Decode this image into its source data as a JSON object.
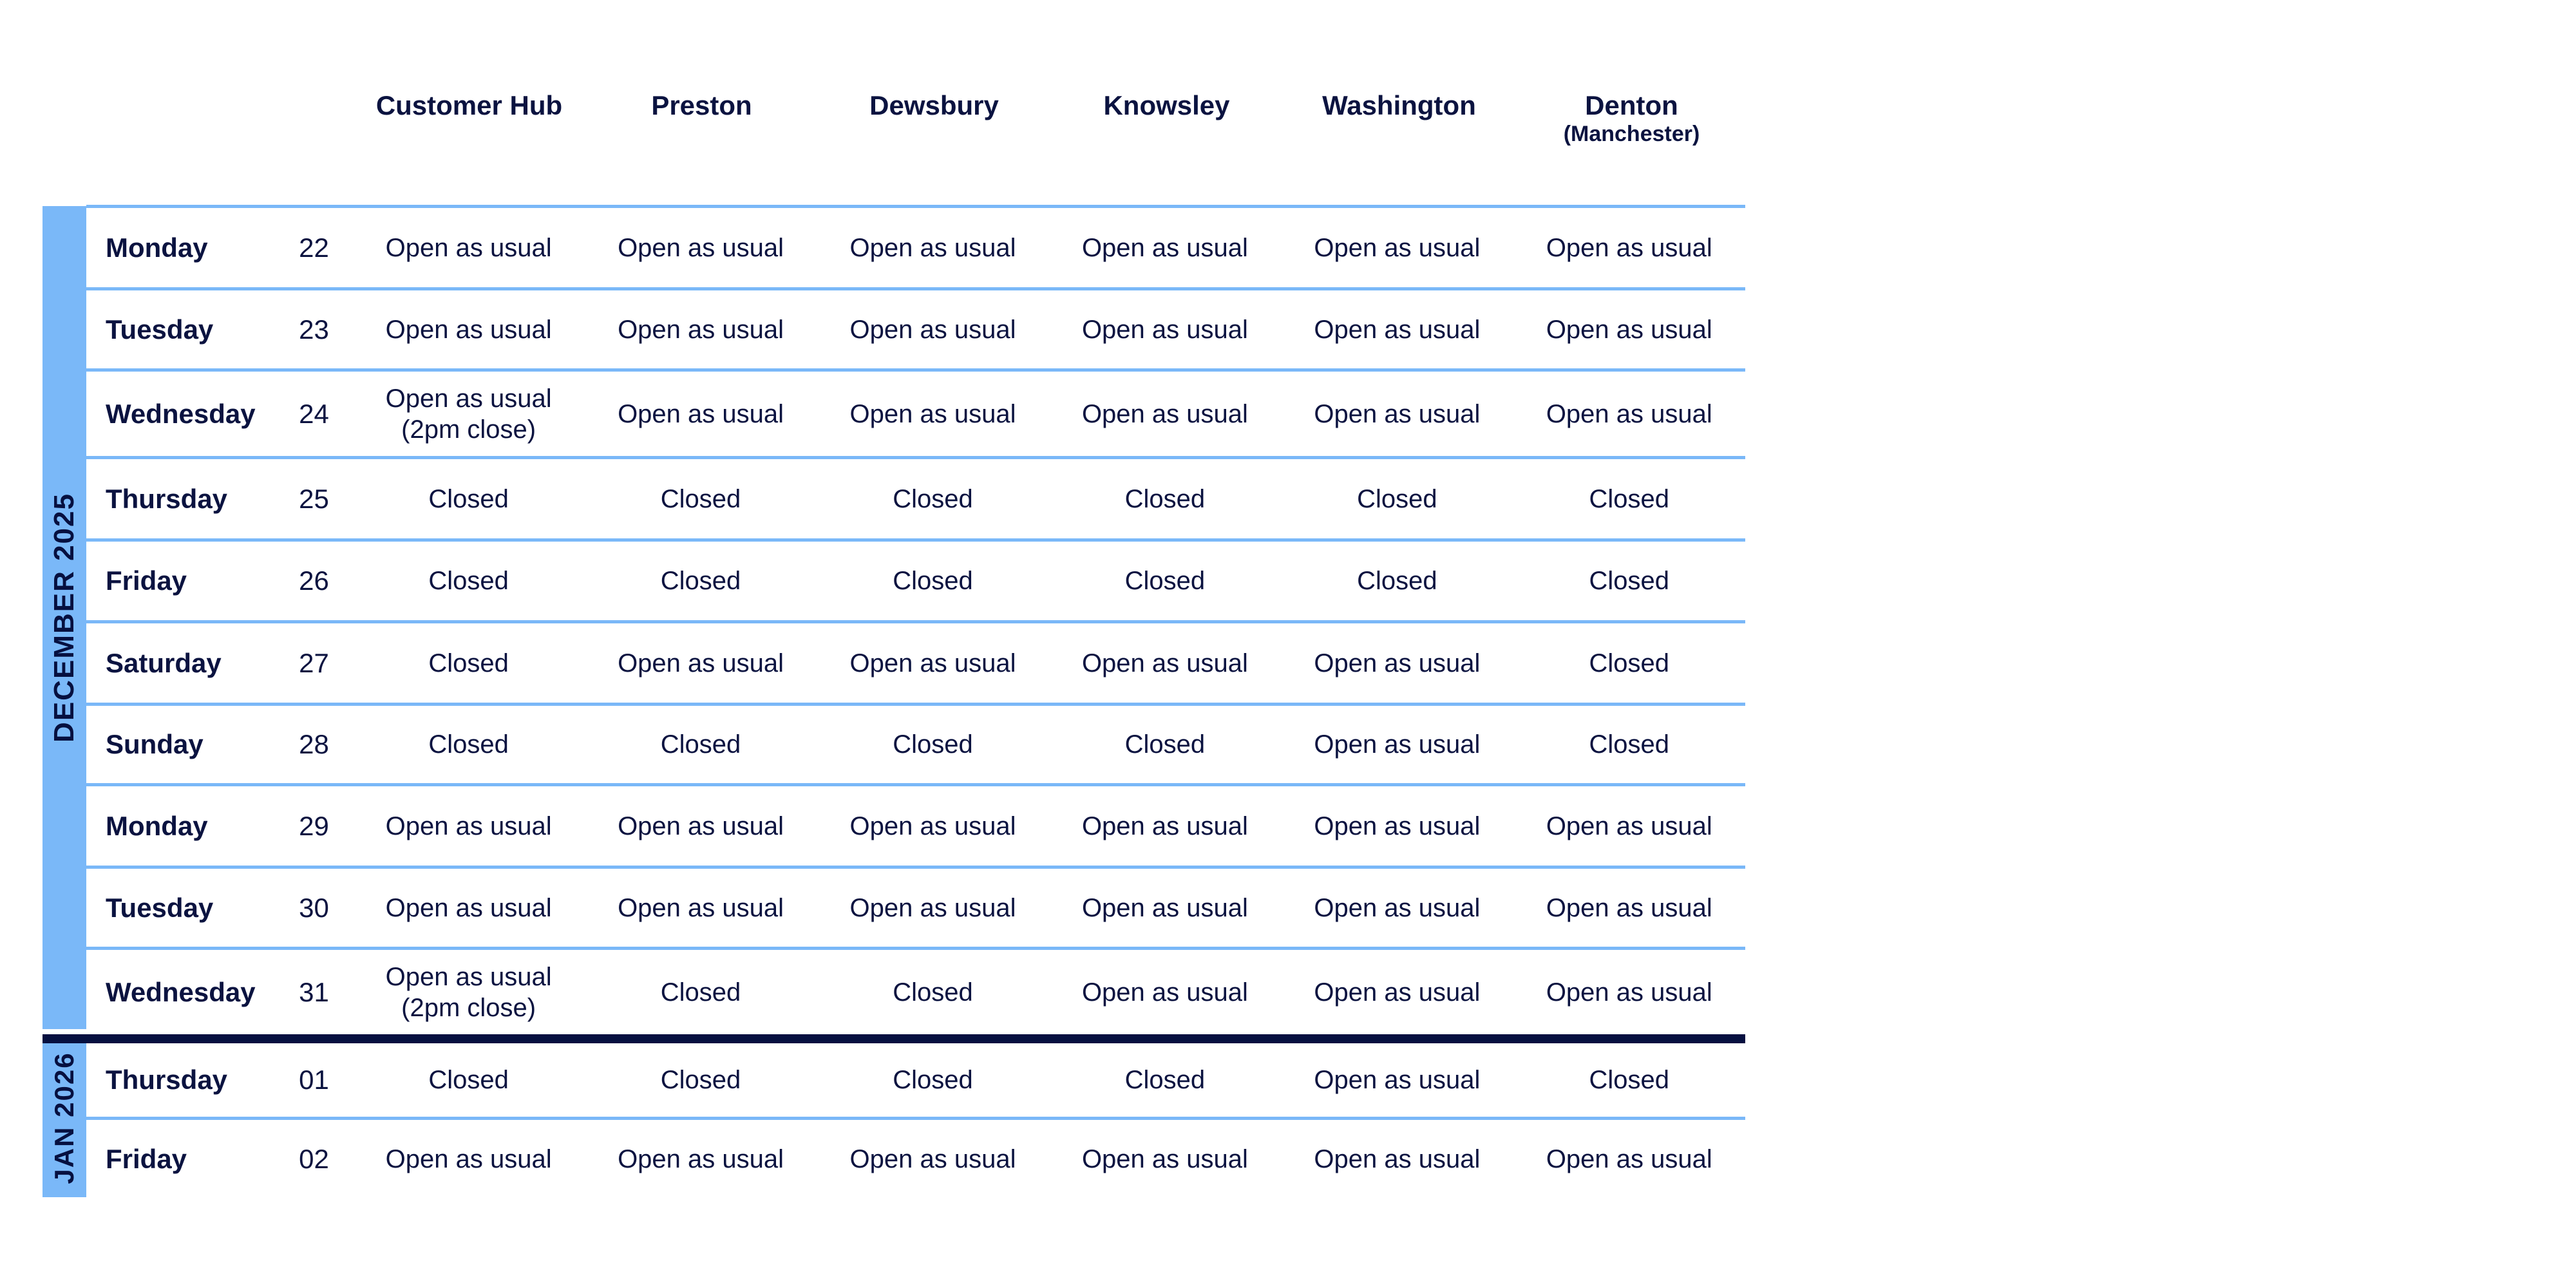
{
  "columns": [
    {
      "name": "Customer Hub"
    },
    {
      "name": "Preston"
    },
    {
      "name": "Dewsbury"
    },
    {
      "name": "Knowsley"
    },
    {
      "name": "Washington"
    },
    {
      "name": "Denton",
      "sub": "(Manchester)"
    }
  ],
  "months": {
    "december": "DECEMBER 2025",
    "january": "JAN 2026"
  },
  "colors": {
    "accent_blue": "#7ab8f8",
    "navy": "#061040",
    "text": "#0b1340"
  },
  "rows": [
    {
      "day": "Monday",
      "date": "22",
      "month": "december",
      "values": [
        "Open as usual",
        "Open as usual",
        "Open as usual",
        "Open as usual",
        "Open as usual",
        "Open as usual"
      ]
    },
    {
      "day": "Tuesday",
      "date": "23",
      "month": "december",
      "values": [
        "Open as usual",
        "Open as usual",
        "Open as usual",
        "Open as usual",
        "Open as usual",
        "Open as usual"
      ]
    },
    {
      "day": "Wednesday",
      "date": "24",
      "month": "december",
      "values": [
        "Open as usual\n(2pm close)",
        "Open as usual",
        "Open as usual",
        "Open as usual",
        "Open as usual",
        "Open as usual"
      ]
    },
    {
      "day": "Thursday",
      "date": "25",
      "month": "december",
      "values": [
        "Closed",
        "Closed",
        "Closed",
        "Closed",
        "Closed",
        "Closed"
      ]
    },
    {
      "day": "Friday",
      "date": "26",
      "month": "december",
      "values": [
        "Closed",
        "Closed",
        "Closed",
        "Closed",
        "Closed",
        "Closed"
      ]
    },
    {
      "day": "Saturday",
      "date": "27",
      "month": "december",
      "values": [
        "Closed",
        "Open as usual",
        "Open as usual",
        "Open as usual",
        "Open as usual",
        "Closed"
      ]
    },
    {
      "day": "Sunday",
      "date": "28",
      "month": "december",
      "values": [
        "Closed",
        "Closed",
        "Closed",
        "Closed",
        "Open as usual",
        "Closed"
      ]
    },
    {
      "day": "Monday",
      "date": "29",
      "month": "december",
      "values": [
        "Open as usual",
        "Open as usual",
        "Open as usual",
        "Open as usual",
        "Open as usual",
        "Open as usual"
      ]
    },
    {
      "day": "Tuesday",
      "date": "30",
      "month": "december",
      "values": [
        "Open as usual",
        "Open as usual",
        "Open as usual",
        "Open as usual",
        "Open as usual",
        "Open as usual"
      ]
    },
    {
      "day": "Wednesday",
      "date": "31",
      "month": "december",
      "values": [
        "Open as usual\n(2pm close)",
        "Closed",
        "Closed",
        "Open as usual",
        "Open as usual",
        "Open as usual"
      ]
    },
    {
      "day": "Thursday",
      "date": "01",
      "month": "january",
      "values": [
        "Closed",
        "Closed",
        "Closed",
        "Closed",
        "Open as usual",
        "Closed"
      ]
    },
    {
      "day": "Friday",
      "date": "02",
      "month": "january",
      "values": [
        "Open as usual",
        "Open as usual",
        "Open as usual",
        "Open as usual",
        "Open as usual",
        "Open as usual"
      ]
    }
  ]
}
